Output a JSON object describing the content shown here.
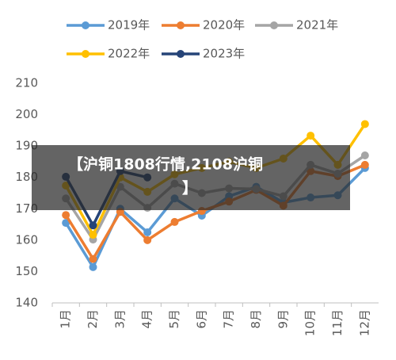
{
  "chart_data": {
    "type": "line",
    "categories": [
      "1月",
      "2月",
      "3月",
      "4月",
      "5月",
      "6月",
      "7月",
      "8月",
      "9月",
      "10月",
      "11月",
      "12月"
    ],
    "series": [
      {
        "name": "2019年",
        "color": "#5b9bd5",
        "values": [
          165.5,
          151.4,
          170,
          162.5,
          173.3,
          167.8,
          174,
          177,
          172,
          173.6,
          174.3,
          183
        ]
      },
      {
        "name": "2020年",
        "color": "#ed7d31",
        "values": [
          168,
          154,
          169,
          160,
          165.8,
          169.3,
          172.3,
          176,
          171,
          182,
          180.4,
          184
        ]
      },
      {
        "name": "2021年",
        "color": "#a5a5a5",
        "values": [
          173.3,
          160.2,
          177,
          170.3,
          178,
          175,
          176.5,
          176.3,
          174,
          184,
          181.2,
          187
        ]
      },
      {
        "name": "2022年",
        "color": "#ffc000",
        "values": [
          177.4,
          161.7,
          180,
          175.4,
          181,
          183,
          185,
          183,
          186,
          193.3,
          184,
          197
        ]
      },
      {
        "name": "2023年",
        "color": "#264478",
        "values": [
          180.2,
          164.7,
          182,
          180,
          null,
          null,
          null,
          null,
          null,
          null,
          null,
          null
        ]
      }
    ],
    "ylim": [
      140,
      210
    ],
    "yticks": [
      140,
      150,
      160,
      170,
      180,
      190,
      200,
      210
    ],
    "grid": false
  },
  "banner": [
    "【沪铜1808行情,2108沪铜",
    "】"
  ]
}
